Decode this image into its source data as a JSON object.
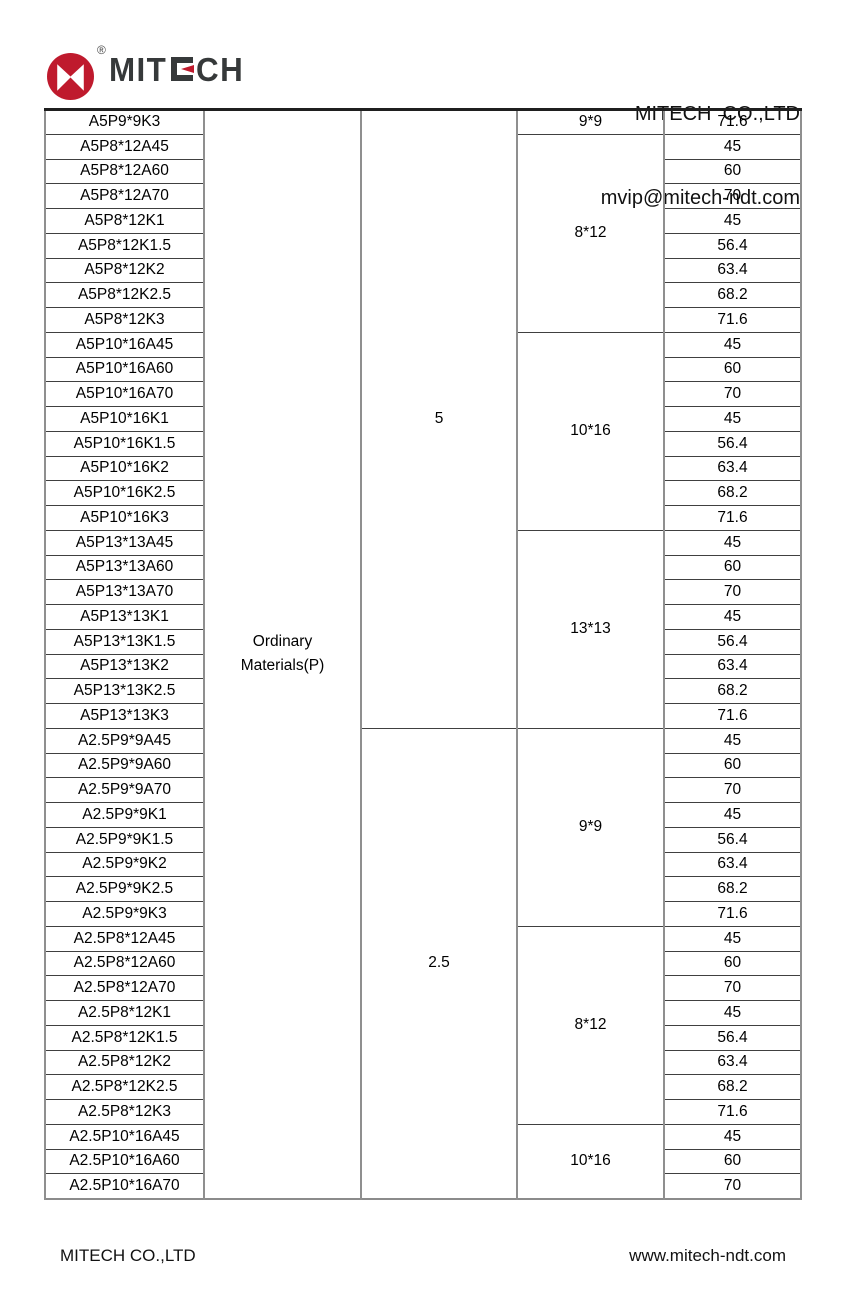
{
  "header": {
    "logo": {
      "brand_prefix": "MIT",
      "brand_suffix": "CH",
      "registered": "®",
      "icon": "mitech-bowtie-icon"
    },
    "company": "MITECH  CO.,LTD",
    "email": "mvip@mitech-ndt.com"
  },
  "footer": {
    "company": "MITECH CO.,LTD",
    "website": "www.mitech-ndt.com"
  },
  "colors": {
    "brand_red": "#bf1a2d",
    "brand_dark": "#36393a",
    "border_dark": "#404040",
    "border_gray": "#8f8f8f"
  },
  "table": {
    "material_groups": [
      {
        "material": "Ordinary Materials(P)",
        "frequency_groups": [
          {
            "frequency": "5",
            "size_groups": [
              {
                "size": "9*9",
                "rows": [
                  {
                    "model": "A5P9*9K3",
                    "value": "71.6"
                  }
                ]
              },
              {
                "size": "8*12",
                "rows": [
                  {
                    "model": "A5P8*12A45",
                    "value": "45"
                  },
                  {
                    "model": "A5P8*12A60",
                    "value": "60"
                  },
                  {
                    "model": "A5P8*12A70",
                    "value": "70"
                  },
                  {
                    "model": "A5P8*12K1",
                    "value": "45"
                  },
                  {
                    "model": "A5P8*12K1.5",
                    "value": "56.4"
                  },
                  {
                    "model": "A5P8*12K2",
                    "value": "63.4"
                  },
                  {
                    "model": "A5P8*12K2.5",
                    "value": "68.2"
                  },
                  {
                    "model": "A5P8*12K3",
                    "value": "71.6"
                  }
                ]
              },
              {
                "size": "10*16",
                "rows": [
                  {
                    "model": "A5P10*16A45",
                    "value": "45"
                  },
                  {
                    "model": "A5P10*16A60",
                    "value": "60"
                  },
                  {
                    "model": "A5P10*16A70",
                    "value": "70"
                  },
                  {
                    "model": "A5P10*16K1",
                    "value": "45"
                  },
                  {
                    "model": "A5P10*16K1.5",
                    "value": "56.4"
                  },
                  {
                    "model": "A5P10*16K2",
                    "value": "63.4"
                  },
                  {
                    "model": "A5P10*16K2.5",
                    "value": "68.2"
                  },
                  {
                    "model": "A5P10*16K3",
                    "value": "71.6"
                  }
                ]
              },
              {
                "size": "13*13",
                "rows": [
                  {
                    "model": "A5P13*13A45",
                    "value": "45"
                  },
                  {
                    "model": "A5P13*13A60",
                    "value": "60"
                  },
                  {
                    "model": "A5P13*13A70",
                    "value": "70"
                  },
                  {
                    "model": "A5P13*13K1",
                    "value": "45"
                  },
                  {
                    "model": "A5P13*13K1.5",
                    "value": "56.4"
                  },
                  {
                    "model": "A5P13*13K2",
                    "value": "63.4"
                  },
                  {
                    "model": "A5P13*13K2.5",
                    "value": "68.2"
                  },
                  {
                    "model": "A5P13*13K3",
                    "value": "71.6"
                  }
                ]
              }
            ]
          },
          {
            "frequency": "2.5",
            "size_groups": [
              {
                "size": "9*9",
                "rows": [
                  {
                    "model": "A2.5P9*9A45",
                    "value": "45"
                  },
                  {
                    "model": "A2.5P9*9A60",
                    "value": "60"
                  },
                  {
                    "model": "A2.5P9*9A70",
                    "value": "70"
                  },
                  {
                    "model": "A2.5P9*9K1",
                    "value": "45"
                  },
                  {
                    "model": "A2.5P9*9K1.5",
                    "value": "56.4"
                  },
                  {
                    "model": "A2.5P9*9K2",
                    "value": "63.4"
                  },
                  {
                    "model": "A2.5P9*9K2.5",
                    "value": "68.2"
                  },
                  {
                    "model": "A2.5P9*9K3",
                    "value": "71.6"
                  }
                ]
              },
              {
                "size": "8*12",
                "rows": [
                  {
                    "model": "A2.5P8*12A45",
                    "value": "45"
                  },
                  {
                    "model": "A2.5P8*12A60",
                    "value": "60"
                  },
                  {
                    "model": "A2.5P8*12A70",
                    "value": "70"
                  },
                  {
                    "model": "A2.5P8*12K1",
                    "value": "45"
                  },
                  {
                    "model": "A2.5P8*12K1.5",
                    "value": "56.4"
                  },
                  {
                    "model": "A2.5P8*12K2",
                    "value": "63.4"
                  },
                  {
                    "model": "A2.5P8*12K2.5",
                    "value": "68.2"
                  },
                  {
                    "model": "A2.5P8*12K3",
                    "value": "71.6"
                  }
                ]
              },
              {
                "size": "10*16",
                "rows": [
                  {
                    "model": "A2.5P10*16A45",
                    "value": "45"
                  },
                  {
                    "model": "A2.5P10*16A60",
                    "value": "60"
                  },
                  {
                    "model": "A2.5P10*16A70",
                    "value": "70"
                  }
                ]
              }
            ]
          }
        ]
      }
    ]
  }
}
